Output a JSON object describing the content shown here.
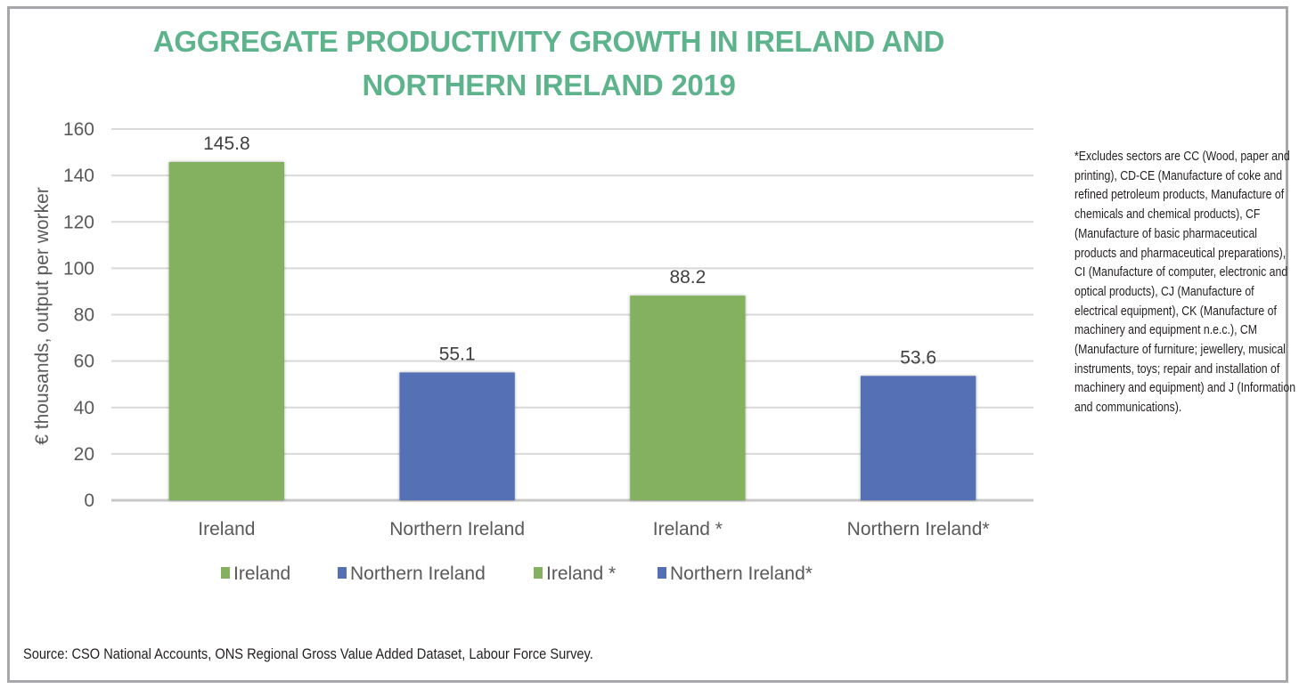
{
  "chart_data": {
    "type": "bar",
    "title": "AGGREGATE PRODUCTIVITY GROWTH IN IRELAND AND NORTHERN IRELAND 2019",
    "title_lines": [
      "AGGREGATE PRODUCTIVITY GROWTH IN IRELAND AND",
      "NORTHERN IRELAND 2019"
    ],
    "categories": [
      "Ireland",
      "Northern Ireland",
      "Ireland *",
      "Northern Ireland*"
    ],
    "values": [
      145.8,
      55.1,
      88.2,
      53.6
    ],
    "value_labels": [
      "145.8",
      "55.1",
      "88.2",
      "53.6"
    ],
    "bar_colors": [
      "#84b160",
      "#5470b5",
      "#84b160",
      "#5470b5"
    ],
    "xlabel": "",
    "ylabel": "€ thousands, output per worker",
    "ylim": [
      0,
      160
    ],
    "yticks": [
      0,
      20,
      40,
      60,
      80,
      100,
      120,
      140,
      160
    ],
    "ytick_labels": [
      "0",
      "20",
      "40",
      "60",
      "80",
      "100",
      "120",
      "140",
      "160"
    ],
    "grid": true,
    "legend": {
      "placement": "bottom",
      "entries": [
        {
          "label": "Ireland",
          "color": "#84b160"
        },
        {
          "label": "Northern Ireland",
          "color": "#5470b5"
        },
        {
          "label": "Ireland *",
          "color": "#84b160"
        },
        {
          "label": "Northern Ireland*",
          "color": "#5470b5"
        }
      ]
    }
  },
  "colors": {
    "title": "#5db38c",
    "frame_border": "#a7a8ab",
    "gridline": "#d9d9d9"
  },
  "footnote": "*Excludes sectors are CC (Wood, paper and printing), CD-CE (Manufacture of coke and refined petroleum products, Manufacture of chemicals and chemical products), CF (Manufacture of basic pharmaceutical products and pharmaceutical preparations), CI (Manufacture of computer, electronic and optical products), CJ (Manufacture of electrical equipment), CK (Manufacture of machinery and equipment n.e.c.), CM (Manufacture of furniture; jewellery, musical instruments, toys; repair and installation of machinery and equipment) and J (Information and communications).",
  "source": "Source: CSO National Accounts, ONS Regional Gross Value Added Dataset, Labour Force Survey."
}
